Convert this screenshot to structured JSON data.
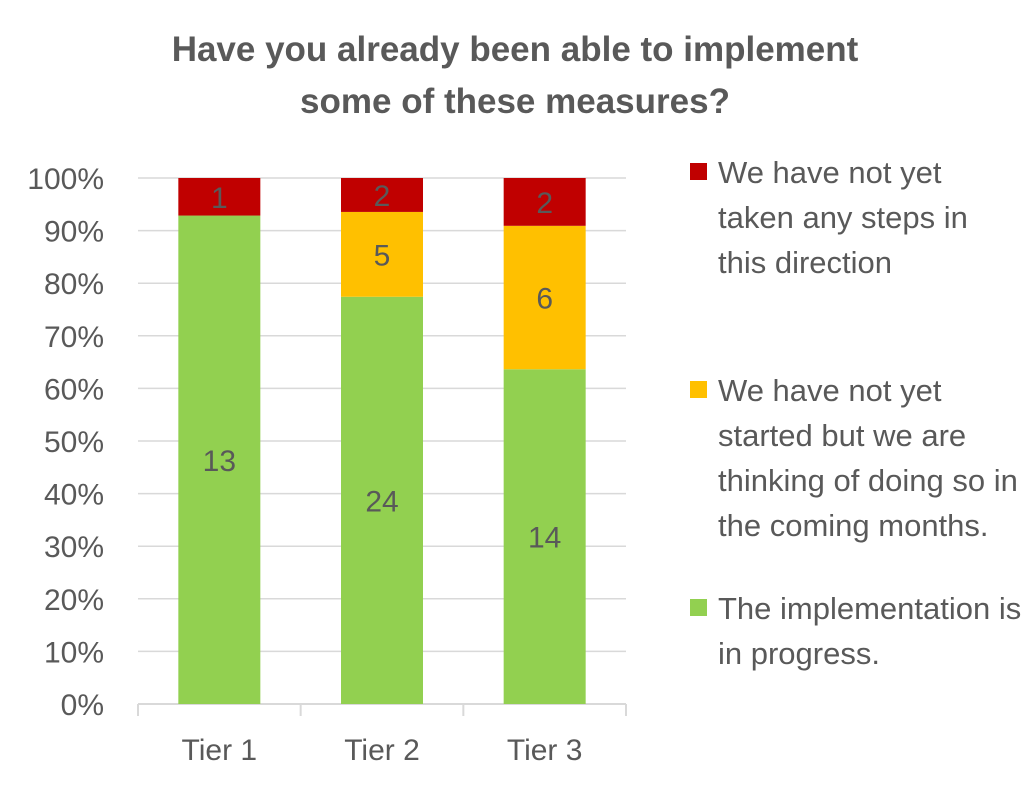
{
  "chart_data": {
    "type": "bar",
    "stacked": true,
    "normalized": true,
    "title_lines": [
      "Have you already been able to implement",
      "some of these measures?"
    ],
    "categories": [
      "Tier 1",
      "Tier 2",
      "Tier 3"
    ],
    "ylim": [
      0,
      100
    ],
    "y_ticks": [
      "0%",
      "10%",
      "20%",
      "30%",
      "40%",
      "50%",
      "60%",
      "70%",
      "80%",
      "90%",
      "100%"
    ],
    "grid": true,
    "legend_position": "right",
    "series": [
      {
        "name": "The implementation is in progress.",
        "color": "#92D050",
        "values": [
          13,
          24,
          14
        ]
      },
      {
        "name": "We have not yet started but we are thinking of doing so in the coming months.",
        "color": "#FFC000",
        "values": [
          0,
          5,
          6
        ]
      },
      {
        "name": "We have not yet taken any steps in this direction",
        "color": "#C00000",
        "values": [
          1,
          2,
          2
        ]
      }
    ],
    "legend": [
      {
        "name": "We have not yet taken any steps in this direction",
        "color": "#C00000"
      },
      {
        "name": "We have not yet started but we are thinking of doing so in the coming months.",
        "color": "#FFC000"
      },
      {
        "name": "The implementation is in progress.",
        "color": "#92D050"
      }
    ]
  }
}
